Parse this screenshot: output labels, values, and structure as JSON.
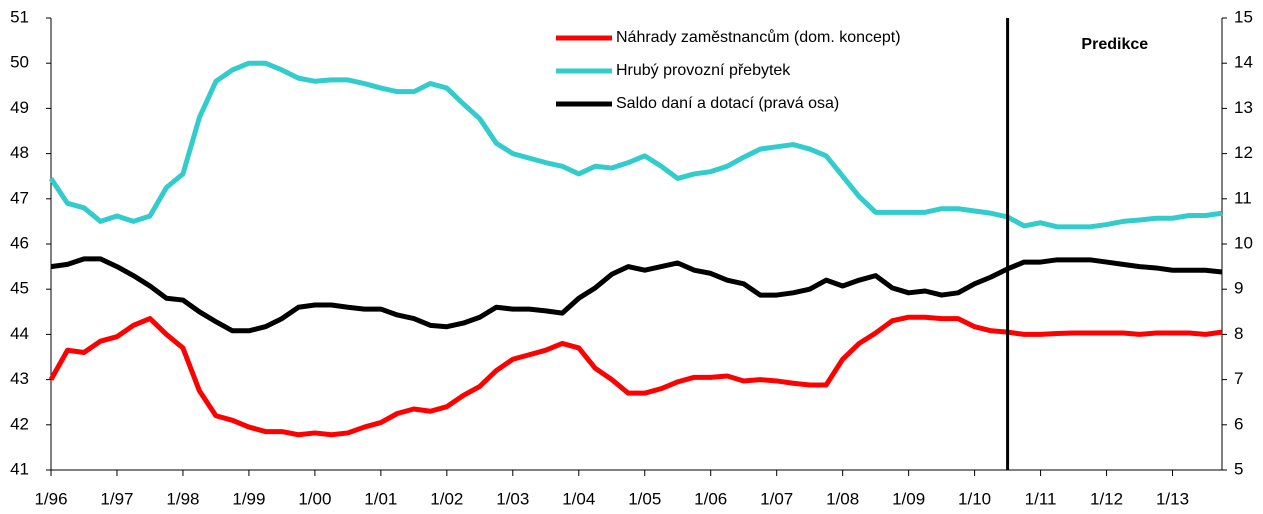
{
  "chart_data": {
    "type": "line",
    "categories": [
      "1/96",
      null,
      null,
      null,
      "1/97",
      null,
      null,
      null,
      "1/98",
      null,
      null,
      null,
      "1/99",
      null,
      null,
      null,
      "1/00",
      null,
      null,
      null,
      "1/01",
      null,
      null,
      null,
      "1/02",
      null,
      null,
      null,
      "1/03",
      null,
      null,
      null,
      "1/04",
      null,
      null,
      null,
      "1/05",
      null,
      null,
      null,
      "1/06",
      null,
      null,
      null,
      "1/07",
      null,
      null,
      null,
      "1/08",
      null,
      null,
      null,
      "1/09",
      null,
      null,
      null,
      "1/10",
      null,
      null,
      null,
      "1/11",
      null,
      null,
      null,
      "1/12",
      null,
      null,
      null,
      "1/13",
      null,
      null,
      null
    ],
    "series": [
      {
        "name": "Náhrady zaměstnancům (dom. koncept)",
        "color": "#ff0000",
        "axis": "y",
        "values": [
          43.0,
          43.65,
          43.6,
          43.85,
          43.95,
          44.2,
          44.35,
          44.0,
          43.7,
          42.75,
          42.2,
          42.1,
          41.95,
          41.85,
          41.85,
          41.78,
          41.82,
          41.78,
          41.82,
          41.95,
          42.05,
          42.25,
          42.35,
          42.3,
          42.4,
          42.65,
          42.85,
          43.2,
          43.45,
          43.55,
          43.65,
          43.8,
          43.7,
          43.25,
          43.0,
          42.7,
          42.7,
          42.8,
          42.95,
          43.05,
          43.05,
          43.08,
          42.97,
          43.0,
          42.97,
          42.92,
          42.88,
          42.88,
          43.45,
          43.8,
          44.03,
          44.3,
          44.38,
          44.38,
          44.35,
          44.35,
          44.17,
          44.08,
          44.05,
          44.0,
          44.0,
          44.02,
          44.03,
          44.03,
          44.03,
          44.03,
          44.0,
          44.03,
          44.03,
          44.03,
          44.0,
          44.05
        ]
      },
      {
        "name": "Hrubý provozní přebytek",
        "color": "#33cccc",
        "axis": "y",
        "values": [
          47.45,
          46.9,
          46.8,
          46.5,
          46.62,
          46.5,
          46.62,
          47.25,
          47.55,
          48.8,
          49.6,
          49.85,
          50.0,
          50.0,
          49.85,
          49.67,
          49.6,
          49.63,
          49.63,
          49.55,
          49.45,
          49.37,
          49.37,
          49.55,
          49.45,
          49.1,
          48.77,
          48.23,
          48.0,
          47.9,
          47.8,
          47.72,
          47.55,
          47.72,
          47.68,
          47.8,
          47.95,
          47.72,
          47.45,
          47.55,
          47.6,
          47.72,
          47.92,
          48.1,
          48.15,
          48.2,
          48.1,
          47.95,
          47.5,
          47.05,
          46.7,
          46.7,
          46.7,
          46.7,
          46.78,
          46.78,
          46.73,
          46.68,
          46.6,
          46.4,
          46.47,
          46.38,
          46.38,
          46.38,
          46.43,
          46.5,
          46.53,
          46.57,
          46.57,
          46.63,
          46.63,
          46.68
        ]
      },
      {
        "name": "Saldo daní a dotací (pravá osa)",
        "color": "#000000",
        "axis": "y2",
        "values": [
          9.5,
          9.55,
          9.67,
          9.67,
          9.5,
          9.3,
          9.07,
          8.8,
          8.76,
          8.5,
          8.28,
          8.08,
          8.08,
          8.17,
          8.35,
          8.6,
          8.65,
          8.65,
          8.6,
          8.56,
          8.56,
          8.43,
          8.35,
          8.2,
          8.17,
          8.25,
          8.38,
          8.6,
          8.56,
          8.56,
          8.52,
          8.47,
          8.8,
          9.03,
          9.33,
          9.5,
          9.42,
          9.5,
          9.58,
          9.42,
          9.35,
          9.2,
          9.12,
          8.87,
          8.87,
          8.92,
          9.0,
          9.2,
          9.07,
          9.2,
          9.3,
          9.03,
          8.92,
          8.96,
          8.87,
          8.92,
          9.12,
          9.27,
          9.45,
          9.6,
          9.6,
          9.65,
          9.65,
          9.65,
          9.6,
          9.55,
          9.5,
          9.47,
          9.42,
          9.42,
          9.42,
          9.38
        ]
      }
    ],
    "ylim": [
      41,
      51
    ],
    "yticks": [
      41,
      42,
      43,
      44,
      45,
      46,
      47,
      48,
      49,
      50,
      51
    ],
    "y2lim": [
      5,
      15
    ],
    "y2ticks": [
      5,
      6,
      7,
      8,
      9,
      10,
      11,
      12,
      13,
      14,
      15
    ],
    "legend": "upper center",
    "annotation": {
      "text": "Predikce",
      "from_index": 58
    }
  }
}
